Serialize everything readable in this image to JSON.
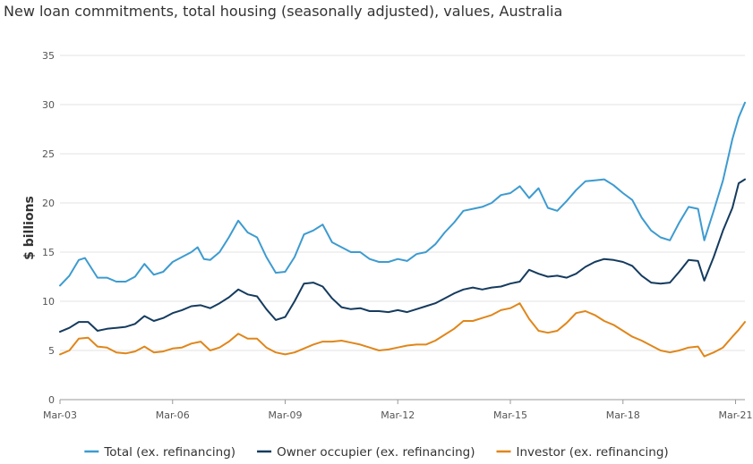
{
  "chart_data": {
    "type": "line",
    "title": "New loan commitments, total housing (seasonally adjusted), values, Australia",
    "xlabel": "",
    "ylabel": "$ billions",
    "x_ticks": [
      "Mar-03",
      "Mar-06",
      "Mar-09",
      "Mar-12",
      "Mar-15",
      "Mar-18",
      "Mar-21"
    ],
    "y_ticks": [
      0,
      5,
      10,
      15,
      20,
      25,
      30,
      35
    ],
    "ylim": [
      0,
      35
    ],
    "xlim": [
      "2003-03",
      "2021-06"
    ],
    "grid": true,
    "legend_position": "bottom",
    "series": [
      {
        "name": "Total (ex. refinancing)",
        "color": "#3d9bd0",
        "points": [
          [
            "2003-03",
            11.6
          ],
          [
            "2003-06",
            12.6
          ],
          [
            "2003-09",
            14.2
          ],
          [
            "2003-11",
            14.4
          ],
          [
            "2004-03",
            12.4
          ],
          [
            "2004-06",
            12.4
          ],
          [
            "2004-09",
            12.0
          ],
          [
            "2004-12",
            12.0
          ],
          [
            "2005-03",
            12.5
          ],
          [
            "2005-06",
            13.8
          ],
          [
            "2005-09",
            12.7
          ],
          [
            "2005-12",
            13.0
          ],
          [
            "2006-03",
            14.0
          ],
          [
            "2006-06",
            14.5
          ],
          [
            "2006-09",
            15.0
          ],
          [
            "2006-11",
            15.5
          ],
          [
            "2007-01",
            14.3
          ],
          [
            "2007-03",
            14.2
          ],
          [
            "2007-06",
            15.0
          ],
          [
            "2007-09",
            16.5
          ],
          [
            "2007-12",
            18.2
          ],
          [
            "2008-03",
            17.0
          ],
          [
            "2008-06",
            16.5
          ],
          [
            "2008-09",
            14.5
          ],
          [
            "2008-12",
            12.9
          ],
          [
            "2009-03",
            13.0
          ],
          [
            "2009-06",
            14.5
          ],
          [
            "2009-09",
            16.8
          ],
          [
            "2009-12",
            17.2
          ],
          [
            "2010-03",
            17.8
          ],
          [
            "2010-06",
            16.0
          ],
          [
            "2010-09",
            15.5
          ],
          [
            "2010-12",
            15.0
          ],
          [
            "2011-03",
            15.0
          ],
          [
            "2011-06",
            14.3
          ],
          [
            "2011-09",
            14.0
          ],
          [
            "2011-12",
            14.0
          ],
          [
            "2012-03",
            14.3
          ],
          [
            "2012-06",
            14.1
          ],
          [
            "2012-09",
            14.8
          ],
          [
            "2012-12",
            15.0
          ],
          [
            "2013-03",
            15.8
          ],
          [
            "2013-06",
            17.0
          ],
          [
            "2013-09",
            18.0
          ],
          [
            "2013-12",
            19.2
          ],
          [
            "2014-03",
            19.4
          ],
          [
            "2014-06",
            19.6
          ],
          [
            "2014-09",
            20.0
          ],
          [
            "2014-12",
            20.8
          ],
          [
            "2015-03",
            21.0
          ],
          [
            "2015-06",
            21.7
          ],
          [
            "2015-09",
            20.5
          ],
          [
            "2015-12",
            21.5
          ],
          [
            "2016-03",
            19.5
          ],
          [
            "2016-06",
            19.2
          ],
          [
            "2016-09",
            20.2
          ],
          [
            "2016-12",
            21.3
          ],
          [
            "2017-03",
            22.2
          ],
          [
            "2017-06",
            22.3
          ],
          [
            "2017-09",
            22.4
          ],
          [
            "2017-12",
            21.8
          ],
          [
            "2018-03",
            21.0
          ],
          [
            "2018-06",
            20.3
          ],
          [
            "2018-09",
            18.5
          ],
          [
            "2018-12",
            17.2
          ],
          [
            "2019-03",
            16.5
          ],
          [
            "2019-06",
            16.2
          ],
          [
            "2019-09",
            18.0
          ],
          [
            "2019-12",
            19.6
          ],
          [
            "2020-03",
            19.4
          ],
          [
            "2020-05",
            16.2
          ],
          [
            "2020-08",
            19.2
          ],
          [
            "2020-11",
            22.3
          ],
          [
            "2021-02",
            26.5
          ],
          [
            "2021-04",
            28.7
          ],
          [
            "2021-06",
            30.2
          ]
        ]
      },
      {
        "name": "Owner occupier (ex. refinancing)",
        "color": "#153b5e",
        "points": [
          [
            "2003-03",
            6.9
          ],
          [
            "2003-06",
            7.3
          ],
          [
            "2003-09",
            7.9
          ],
          [
            "2003-12",
            7.9
          ],
          [
            "2004-03",
            7.0
          ],
          [
            "2004-06",
            7.2
          ],
          [
            "2004-09",
            7.3
          ],
          [
            "2004-12",
            7.4
          ],
          [
            "2005-03",
            7.7
          ],
          [
            "2005-06",
            8.5
          ],
          [
            "2005-09",
            8.0
          ],
          [
            "2005-12",
            8.3
          ],
          [
            "2006-03",
            8.8
          ],
          [
            "2006-06",
            9.1
          ],
          [
            "2006-09",
            9.5
          ],
          [
            "2006-12",
            9.6
          ],
          [
            "2007-03",
            9.3
          ],
          [
            "2007-06",
            9.8
          ],
          [
            "2007-09",
            10.4
          ],
          [
            "2007-12",
            11.2
          ],
          [
            "2008-03",
            10.7
          ],
          [
            "2008-06",
            10.5
          ],
          [
            "2008-09",
            9.2
          ],
          [
            "2008-12",
            8.1
          ],
          [
            "2009-03",
            8.4
          ],
          [
            "2009-06",
            10.0
          ],
          [
            "2009-09",
            11.8
          ],
          [
            "2009-12",
            11.9
          ],
          [
            "2010-03",
            11.5
          ],
          [
            "2010-06",
            10.3
          ],
          [
            "2010-09",
            9.4
          ],
          [
            "2010-12",
            9.2
          ],
          [
            "2011-03",
            9.3
          ],
          [
            "2011-06",
            9.0
          ],
          [
            "2011-09",
            9.0
          ],
          [
            "2011-12",
            8.9
          ],
          [
            "2012-03",
            9.1
          ],
          [
            "2012-06",
            8.9
          ],
          [
            "2012-09",
            9.2
          ],
          [
            "2012-12",
            9.5
          ],
          [
            "2013-03",
            9.8
          ],
          [
            "2013-06",
            10.3
          ],
          [
            "2013-09",
            10.8
          ],
          [
            "2013-12",
            11.2
          ],
          [
            "2014-03",
            11.4
          ],
          [
            "2014-06",
            11.2
          ],
          [
            "2014-09",
            11.4
          ],
          [
            "2014-12",
            11.5
          ],
          [
            "2015-03",
            11.8
          ],
          [
            "2015-06",
            12.0
          ],
          [
            "2015-09",
            13.2
          ],
          [
            "2015-12",
            12.8
          ],
          [
            "2016-03",
            12.5
          ],
          [
            "2016-06",
            12.6
          ],
          [
            "2016-09",
            12.4
          ],
          [
            "2016-12",
            12.8
          ],
          [
            "2017-03",
            13.5
          ],
          [
            "2017-06",
            14.0
          ],
          [
            "2017-09",
            14.3
          ],
          [
            "2017-12",
            14.2
          ],
          [
            "2018-03",
            14.0
          ],
          [
            "2018-06",
            13.6
          ],
          [
            "2018-09",
            12.6
          ],
          [
            "2018-12",
            11.9
          ],
          [
            "2019-03",
            11.8
          ],
          [
            "2019-06",
            11.9
          ],
          [
            "2019-09",
            13.0
          ],
          [
            "2019-12",
            14.2
          ],
          [
            "2020-03",
            14.1
          ],
          [
            "2020-05",
            12.1
          ],
          [
            "2020-08",
            14.5
          ],
          [
            "2020-11",
            17.2
          ],
          [
            "2021-02",
            19.5
          ],
          [
            "2021-04",
            22.0
          ],
          [
            "2021-06",
            22.4
          ]
        ]
      },
      {
        "name": "Investor (ex. refinancing)",
        "color": "#e0861a",
        "points": [
          [
            "2003-03",
            4.6
          ],
          [
            "2003-06",
            5.0
          ],
          [
            "2003-09",
            6.2
          ],
          [
            "2003-12",
            6.3
          ],
          [
            "2004-03",
            5.4
          ],
          [
            "2004-06",
            5.3
          ],
          [
            "2004-09",
            4.8
          ],
          [
            "2004-12",
            4.7
          ],
          [
            "2005-03",
            4.9
          ],
          [
            "2005-06",
            5.4
          ],
          [
            "2005-09",
            4.8
          ],
          [
            "2005-12",
            4.9
          ],
          [
            "2006-03",
            5.2
          ],
          [
            "2006-06",
            5.3
          ],
          [
            "2006-09",
            5.7
          ],
          [
            "2006-12",
            5.9
          ],
          [
            "2007-03",
            5.0
          ],
          [
            "2007-06",
            5.3
          ],
          [
            "2007-09",
            5.9
          ],
          [
            "2007-12",
            6.7
          ],
          [
            "2008-03",
            6.2
          ],
          [
            "2008-06",
            6.2
          ],
          [
            "2008-09",
            5.3
          ],
          [
            "2008-12",
            4.8
          ],
          [
            "2009-03",
            4.6
          ],
          [
            "2009-06",
            4.8
          ],
          [
            "2009-09",
            5.2
          ],
          [
            "2009-12",
            5.6
          ],
          [
            "2010-03",
            5.9
          ],
          [
            "2010-06",
            5.9
          ],
          [
            "2010-09",
            6.0
          ],
          [
            "2010-12",
            5.8
          ],
          [
            "2011-03",
            5.6
          ],
          [
            "2011-06",
            5.3
          ],
          [
            "2011-09",
            5.0
          ],
          [
            "2011-12",
            5.1
          ],
          [
            "2012-03",
            5.3
          ],
          [
            "2012-06",
            5.5
          ],
          [
            "2012-09",
            5.6
          ],
          [
            "2012-12",
            5.6
          ],
          [
            "2013-03",
            6.0
          ],
          [
            "2013-06",
            6.6
          ],
          [
            "2013-09",
            7.2
          ],
          [
            "2013-12",
            8.0
          ],
          [
            "2014-03",
            8.0
          ],
          [
            "2014-06",
            8.3
          ],
          [
            "2014-09",
            8.6
          ],
          [
            "2014-12",
            9.1
          ],
          [
            "2015-03",
            9.3
          ],
          [
            "2015-06",
            9.8
          ],
          [
            "2015-09",
            8.2
          ],
          [
            "2015-12",
            7.0
          ],
          [
            "2016-03",
            6.8
          ],
          [
            "2016-06",
            7.0
          ],
          [
            "2016-09",
            7.8
          ],
          [
            "2016-12",
            8.8
          ],
          [
            "2017-03",
            9.0
          ],
          [
            "2017-06",
            8.6
          ],
          [
            "2017-09",
            8.0
          ],
          [
            "2017-12",
            7.6
          ],
          [
            "2018-03",
            7.0
          ],
          [
            "2018-06",
            6.4
          ],
          [
            "2018-09",
            6.0
          ],
          [
            "2018-12",
            5.5
          ],
          [
            "2019-03",
            5.0
          ],
          [
            "2019-06",
            4.8
          ],
          [
            "2019-09",
            5.0
          ],
          [
            "2019-12",
            5.3
          ],
          [
            "2020-03",
            5.4
          ],
          [
            "2020-05",
            4.4
          ],
          [
            "2020-08",
            4.8
          ],
          [
            "2020-11",
            5.3
          ],
          [
            "2021-02",
            6.4
          ],
          [
            "2021-04",
            7.1
          ],
          [
            "2021-06",
            7.9
          ]
        ]
      }
    ]
  }
}
